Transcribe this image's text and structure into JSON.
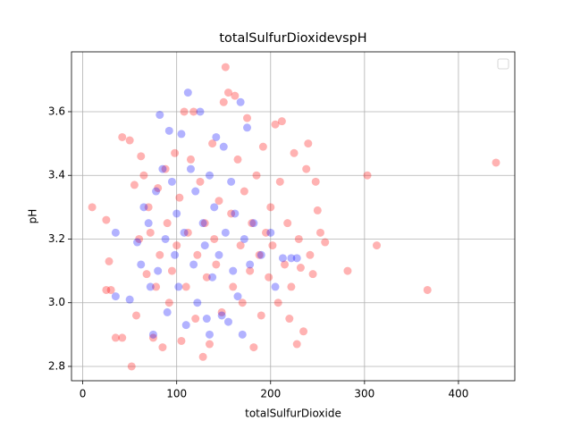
{
  "chart_data": {
    "type": "scatter",
    "title": "totalSulfurDioxidevspH",
    "x_label": "totalSulfurDioxide",
    "y_label": "pH",
    "xlim": [
      -12,
      460
    ],
    "ylim": [
      2.755,
      3.788
    ],
    "xticks": [
      0,
      100,
      200,
      300,
      400
    ],
    "yticks": [
      2.8,
      {
        "value": 3,
        "label": "3.0"
      },
      3.2,
      3.4,
      3.6
    ],
    "grid": true,
    "legend": "upper right",
    "series": [
      {
        "color": "#ff0000",
        "x": [
          10,
          25,
          25,
          28,
          30,
          35,
          42,
          42,
          50,
          52,
          55,
          57,
          60,
          62,
          65,
          68,
          70,
          72,
          75,
          78,
          80,
          82,
          85,
          88,
          90,
          92,
          95,
          98,
          100,
          103,
          105,
          108,
          110,
          112,
          115,
          118,
          120,
          122,
          125,
          128,
          130,
          132,
          135,
          138,
          140,
          142,
          145,
          148,
          150,
          152,
          155,
          158,
          160,
          162,
          165,
          168,
          170,
          172,
          175,
          178,
          180,
          182,
          185,
          188,
          190,
          192,
          195,
          198,
          200,
          202,
          205,
          208,
          210,
          212,
          215,
          218,
          220,
          222,
          225,
          228,
          230,
          232,
          235,
          238,
          240,
          242,
          245,
          248,
          250,
          253,
          258,
          282,
          303,
          313,
          367,
          440
        ],
        "values": [
          3.3,
          3.26,
          3.04,
          3.13,
          3.04,
          2.89,
          2.89,
          3.52,
          3.51,
          2.8,
          3.37,
          2.96,
          3.2,
          3.46,
          3.4,
          3.09,
          3.3,
          3.22,
          2.89,
          3.05,
          3.36,
          3.15,
          2.86,
          3.42,
          3.25,
          3.0,
          3.1,
          3.47,
          3.18,
          3.33,
          2.88,
          3.6,
          3.05,
          3.22,
          3.45,
          3.6,
          2.95,
          3.15,
          3.38,
          2.83,
          3.25,
          3.08,
          2.87,
          3.5,
          3.2,
          3.12,
          3.32,
          2.97,
          3.63,
          3.74,
          3.66,
          3.28,
          3.05,
          3.65,
          3.45,
          3.18,
          3.0,
          3.35,
          3.58,
          3.1,
          3.25,
          2.86,
          3.4,
          3.15,
          2.96,
          3.49,
          3.22,
          3.08,
          3.3,
          3.18,
          3.56,
          3.0,
          3.38,
          3.57,
          3.12,
          3.25,
          2.95,
          3.05,
          3.47,
          2.87,
          3.2,
          3.11,
          2.91,
          3.42,
          3.5,
          3.15,
          3.09,
          3.38,
          3.29,
          3.22,
          3.19,
          3.1,
          3.4,
          3.18,
          3.04,
          3.44
        ]
      },
      {
        "color": "#0000ff",
        "x": [
          35,
          35,
          50,
          58,
          62,
          65,
          70,
          72,
          75,
          78,
          80,
          82,
          85,
          88,
          90,
          92,
          95,
          98,
          100,
          102,
          105,
          108,
          110,
          112,
          115,
          118,
          120,
          122,
          125,
          128,
          130,
          132,
          135,
          135,
          138,
          140,
          142,
          145,
          148,
          150,
          152,
          155,
          158,
          160,
          162,
          165,
          168,
          170,
          172,
          175,
          178,
          182,
          190,
          200,
          205,
          213,
          222,
          228
        ],
        "values": [
          3.22,
          3.02,
          3.01,
          3.19,
          3.12,
          3.3,
          3.25,
          3.05,
          2.9,
          3.35,
          3.1,
          3.59,
          3.42,
          3.2,
          2.97,
          3.54,
          3.38,
          3.15,
          3.28,
          3.05,
          3.53,
          3.22,
          2.93,
          3.66,
          3.42,
          3.12,
          3.35,
          3.0,
          3.6,
          3.25,
          3.18,
          2.95,
          3.4,
          2.9,
          3.08,
          3.3,
          3.52,
          3.15,
          2.96,
          3.49,
          3.22,
          2.94,
          3.38,
          3.1,
          3.28,
          3.02,
          3.63,
          2.9,
          3.2,
          3.55,
          3.12,
          3.25,
          3.15,
          3.22,
          3.05,
          3.14,
          3.14,
          3.14
        ]
      }
    ]
  }
}
